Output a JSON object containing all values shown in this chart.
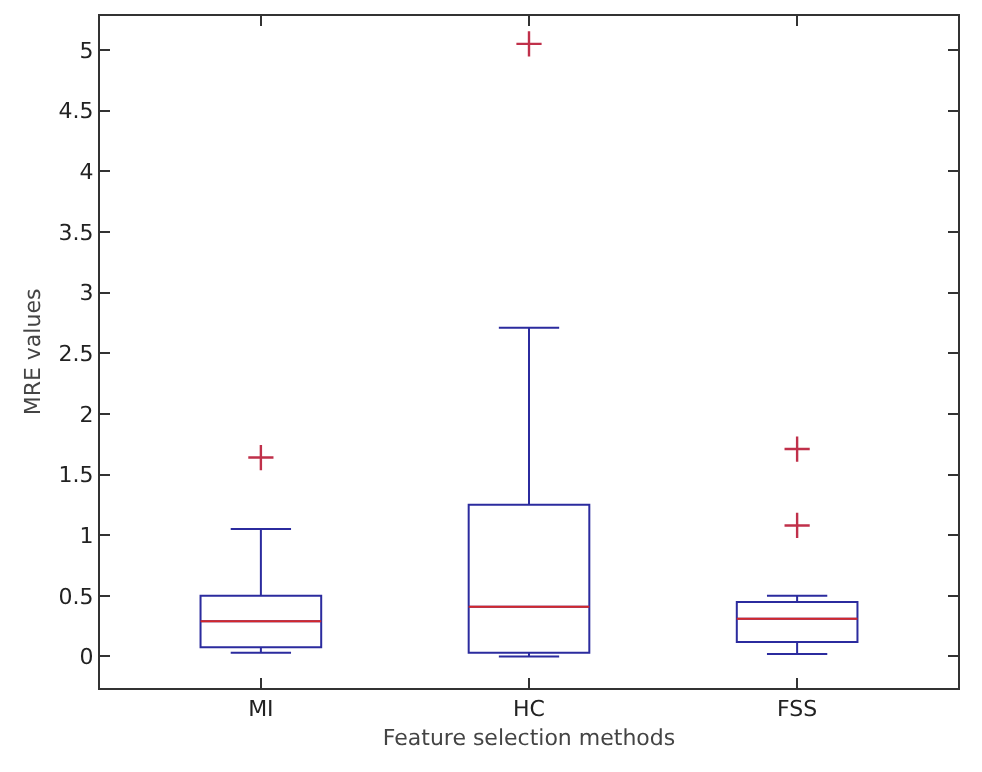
{
  "chart_data": {
    "type": "box",
    "xlabel": "Feature selection methods",
    "ylabel": "MRE values",
    "categories": [
      "MI",
      "HC",
      "FSS"
    ],
    "boxes": [
      {
        "low": 0.03,
        "q1": 0.075,
        "median": 0.29,
        "q3": 0.5,
        "high": 1.05,
        "outliers": [
          1.64
        ]
      },
      {
        "low": 0.0,
        "q1": 0.03,
        "median": 0.41,
        "q3": 1.25,
        "high": 2.71,
        "outliers": [
          5.05
        ]
      },
      {
        "low": 0.02,
        "q1": 0.12,
        "median": 0.31,
        "q3": 0.45,
        "high": 0.5,
        "outliers": [
          1.08,
          1.71
        ]
      }
    ],
    "color": "#2b2b9e",
    "marker": "cross",
    "ylim": [
      -0.26,
      5.28
    ],
    "yticks": [
      0,
      0.5,
      1,
      1.5,
      2,
      2.5,
      3,
      3.5,
      4,
      4.5,
      5
    ],
    "grid": false
  }
}
